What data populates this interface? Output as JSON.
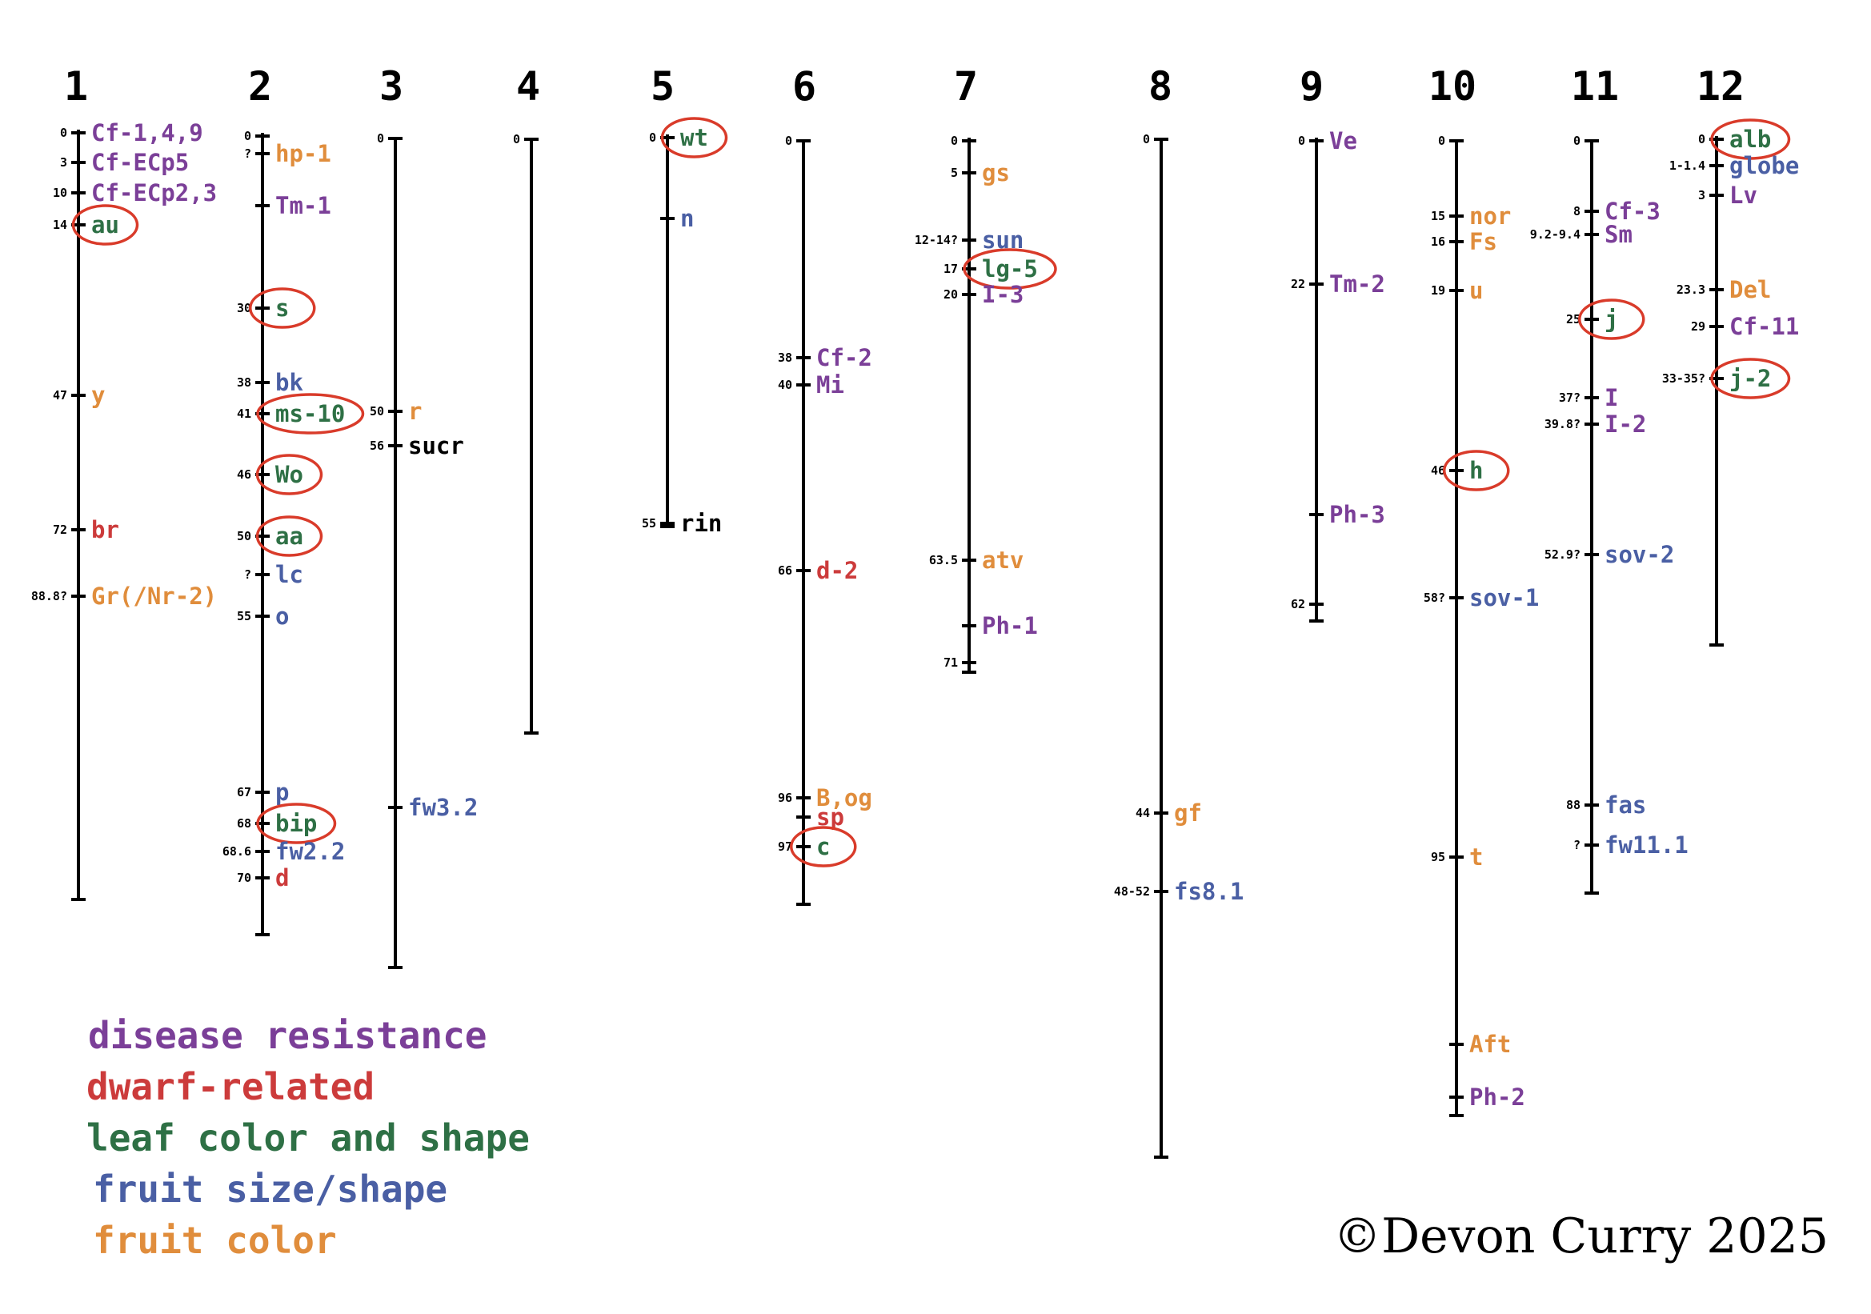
{
  "colors": {
    "disease": "#7b3f98",
    "dwarf": "#cc3b3b",
    "leaf": "#2e7045",
    "fruit_size": "#4a5fa4",
    "fruit_color": "#e08d3c",
    "plain": "#000000",
    "circle": "#d93b2a"
  },
  "legend": [
    {
      "label": "disease resistance",
      "category": "disease"
    },
    {
      "label": "dwarf-related",
      "category": "dwarf"
    },
    {
      "label": "leaf color and shape",
      "category": "leaf"
    },
    {
      "label": "fruit size/shape",
      "category": "fruit_size"
    },
    {
      "label": "fruit color",
      "category": "fruit_color"
    }
  ],
  "credit": "©Devon Curry 2025",
  "chromosomes": [
    {
      "name": "1",
      "genes": [
        {
          "pos": "0",
          "name": "Cf-1,4,9",
          "category": "disease",
          "circled": false
        },
        {
          "pos": "3",
          "name": "Cf-ECp5",
          "category": "disease",
          "circled": false
        },
        {
          "pos": "10",
          "name": "Cf-ECp2,3",
          "category": "disease",
          "circled": false
        },
        {
          "pos": "14",
          "name": "au",
          "category": "leaf",
          "circled": true
        },
        {
          "pos": "47",
          "name": "y",
          "category": "fruit_color",
          "circled": false
        },
        {
          "pos": "72",
          "name": "br",
          "category": "dwarf",
          "circled": false
        },
        {
          "pos": "88.8?",
          "name": "Gr(/Nr-2)",
          "category": "fruit_color",
          "circled": false
        }
      ]
    },
    {
      "name": "2",
      "genes": [
        {
          "pos": "0",
          "name": "",
          "category": "plain",
          "circled": false
        },
        {
          "pos": "?",
          "name": "hp-1",
          "category": "fruit_color",
          "circled": false
        },
        {
          "pos": "",
          "name": "Tm-1",
          "category": "disease",
          "circled": false
        },
        {
          "pos": "30",
          "name": "s",
          "category": "leaf",
          "circled": true
        },
        {
          "pos": "38",
          "name": "bk",
          "category": "fruit_size",
          "circled": false
        },
        {
          "pos": "41",
          "name": "ms-10",
          "category": "leaf",
          "circled": true
        },
        {
          "pos": "46",
          "name": "Wo",
          "category": "leaf",
          "circled": true
        },
        {
          "pos": "50",
          "name": "aa",
          "category": "leaf",
          "circled": true
        },
        {
          "pos": "?",
          "name": "lc",
          "category": "fruit_size",
          "circled": false
        },
        {
          "pos": "55",
          "name": "o",
          "category": "fruit_size",
          "circled": false
        },
        {
          "pos": "67",
          "name": "p",
          "category": "fruit_size",
          "circled": false
        },
        {
          "pos": "68",
          "name": "bip",
          "category": "leaf",
          "circled": true
        },
        {
          "pos": "68.6",
          "name": "fw2.2",
          "category": "fruit_size",
          "circled": false
        },
        {
          "pos": "70",
          "name": "d",
          "category": "dwarf",
          "circled": false
        }
      ]
    },
    {
      "name": "3",
      "genes": [
        {
          "pos": "0",
          "name": "",
          "category": "plain",
          "circled": false
        },
        {
          "pos": "50",
          "name": "r",
          "category": "fruit_color",
          "circled": false
        },
        {
          "pos": "56",
          "name": "sucr",
          "category": "plain",
          "circled": false
        },
        {
          "pos": "",
          "name": "fw3.2",
          "category": "fruit_size",
          "circled": false
        }
      ]
    },
    {
      "name": "4",
      "genes": [
        {
          "pos": "0",
          "name": "",
          "category": "plain",
          "circled": false
        }
      ]
    },
    {
      "name": "5",
      "genes": [
        {
          "pos": "0",
          "name": "wt",
          "category": "leaf",
          "circled": true
        },
        {
          "pos": "",
          "name": "n",
          "category": "fruit_size",
          "circled": false
        },
        {
          "pos": "55",
          "name": "rin",
          "category": "plain",
          "circled": false
        }
      ]
    },
    {
      "name": "6",
      "genes": [
        {
          "pos": "0",
          "name": "",
          "category": "plain",
          "circled": false
        },
        {
          "pos": "38",
          "name": "Cf-2",
          "category": "disease",
          "circled": false
        },
        {
          "pos": "40",
          "name": "Mi",
          "category": "disease",
          "circled": false
        },
        {
          "pos": "66",
          "name": "d-2",
          "category": "dwarf",
          "circled": false
        },
        {
          "pos": "96",
          "name": "B,og",
          "category": "fruit_color",
          "circled": false
        },
        {
          "pos": "",
          "name": "sp",
          "category": "dwarf",
          "circled": false
        },
        {
          "pos": "97",
          "name": "c",
          "category": "leaf",
          "circled": true
        }
      ]
    },
    {
      "name": "7",
      "genes": [
        {
          "pos": "0",
          "name": "",
          "category": "plain",
          "circled": false
        },
        {
          "pos": "5",
          "name": "gs",
          "category": "fruit_color",
          "circled": false
        },
        {
          "pos": "12-14?",
          "name": "sun",
          "category": "fruit_size",
          "circled": false
        },
        {
          "pos": "17",
          "name": "lg-5",
          "category": "leaf",
          "circled": true
        },
        {
          "pos": "20",
          "name": "I-3",
          "category": "disease",
          "circled": false
        },
        {
          "pos": "63.5",
          "name": "atv",
          "category": "fruit_color",
          "circled": false
        },
        {
          "pos": "",
          "name": "Ph-1",
          "category": "disease",
          "circled": false
        },
        {
          "pos": "71",
          "name": "",
          "category": "plain",
          "circled": false
        }
      ]
    },
    {
      "name": "8",
      "genes": [
        {
          "pos": "0",
          "name": "",
          "category": "plain",
          "circled": false
        },
        {
          "pos": "44",
          "name": "gf",
          "category": "fruit_color",
          "circled": false
        },
        {
          "pos": "48-52",
          "name": "fs8.1",
          "category": "fruit_size",
          "circled": false
        }
      ]
    },
    {
      "name": "9",
      "genes": [
        {
          "pos": "0",
          "name": "Ve",
          "category": "disease",
          "circled": false
        },
        {
          "pos": "22",
          "name": "Tm-2",
          "category": "disease",
          "circled": false
        },
        {
          "pos": "",
          "name": "Ph-3",
          "category": "disease",
          "circled": false
        },
        {
          "pos": "62",
          "name": "",
          "category": "plain",
          "circled": false
        }
      ]
    },
    {
      "name": "10",
      "genes": [
        {
          "pos": "0",
          "name": "",
          "category": "plain",
          "circled": false
        },
        {
          "pos": "15",
          "name": "nor",
          "category": "fruit_color",
          "circled": false
        },
        {
          "pos": "16",
          "name": "Fs",
          "category": "fruit_color",
          "circled": false
        },
        {
          "pos": "19",
          "name": "u",
          "category": "fruit_color",
          "circled": false
        },
        {
          "pos": "46",
          "name": "h",
          "category": "leaf",
          "circled": true
        },
        {
          "pos": "58?",
          "name": "sov-1",
          "category": "fruit_size",
          "circled": false
        },
        {
          "pos": "95",
          "name": "t",
          "category": "fruit_color",
          "circled": false
        },
        {
          "pos": "",
          "name": "Aft",
          "category": "fruit_color",
          "circled": false
        },
        {
          "pos": "",
          "name": "Ph-2",
          "category": "disease",
          "circled": false
        }
      ]
    },
    {
      "name": "11",
      "genes": [
        {
          "pos": "0",
          "name": "",
          "category": "plain",
          "circled": false
        },
        {
          "pos": "8",
          "name": "Cf-3",
          "category": "disease",
          "circled": false
        },
        {
          "pos": "9.2-9.4",
          "name": "Sm",
          "category": "disease",
          "circled": false
        },
        {
          "pos": "25",
          "name": "j",
          "category": "leaf",
          "circled": true
        },
        {
          "pos": "37?",
          "name": "I",
          "category": "disease",
          "circled": false
        },
        {
          "pos": "39.8?",
          "name": "I-2",
          "category": "disease",
          "circled": false
        },
        {
          "pos": "52.9?",
          "name": "sov-2",
          "category": "fruit_size",
          "circled": false
        },
        {
          "pos": "88",
          "name": "fas",
          "category": "fruit_size",
          "circled": false
        },
        {
          "pos": "?",
          "name": "fw11.1",
          "category": "fruit_size",
          "circled": false
        }
      ]
    },
    {
      "name": "12",
      "genes": [
        {
          "pos": "0",
          "name": "alb",
          "category": "leaf",
          "circled": true
        },
        {
          "pos": "1-1.4",
          "name": "globe",
          "category": "fruit_size",
          "circled": false
        },
        {
          "pos": "3",
          "name": "Lv",
          "category": "disease",
          "circled": false
        },
        {
          "pos": "23.3",
          "name": "Del",
          "category": "fruit_color",
          "circled": false
        },
        {
          "pos": "29",
          "name": "Cf-11",
          "category": "disease",
          "circled": false
        },
        {
          "pos": "33-35?",
          "name": "j-2",
          "category": "leaf",
          "circled": true
        }
      ]
    }
  ]
}
